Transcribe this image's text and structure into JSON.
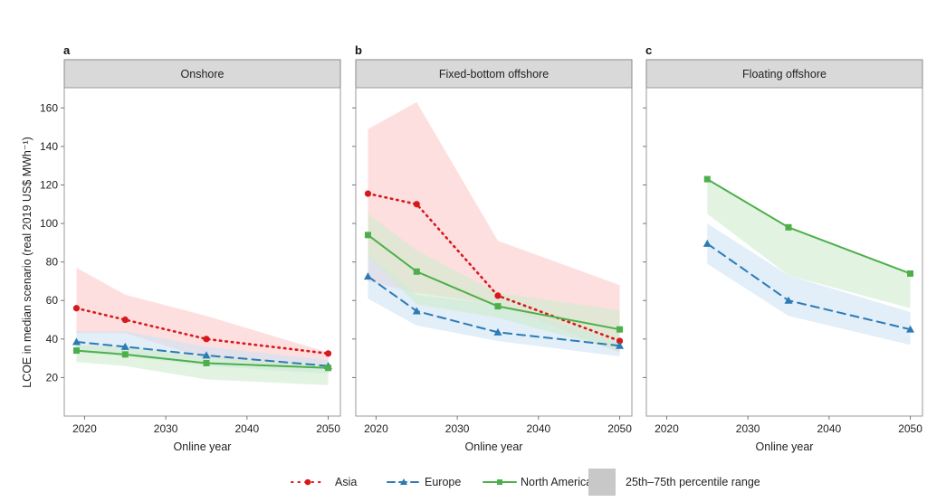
{
  "chart_data": {
    "type": "line",
    "ylabel": "LCOE in median scenario (real 2019 US$ MWh⁻¹)",
    "xlabel": "Online year",
    "ylim": [
      0,
      170
    ],
    "yticks": [
      20,
      40,
      60,
      80,
      100,
      120,
      140,
      160
    ],
    "xlim": [
      2017.5,
      2051.5
    ],
    "xticks": [
      2020,
      2030,
      2040,
      2050
    ],
    "grid": false,
    "legend_position": "bottom",
    "legend": [
      {
        "name": "Asia",
        "color": "#d7191c",
        "style": "dotted",
        "marker": "circle"
      },
      {
        "name": "Europe",
        "color": "#2c7bb6",
        "style": "dashed",
        "marker": "triangle"
      },
      {
        "name": "North America",
        "color": "#4daf4a",
        "style": "solid",
        "marker": "square"
      },
      {
        "name": "25th–75th percentile range",
        "color": "#c8c8c8",
        "style": "fill",
        "marker": "box"
      }
    ],
    "panels": [
      {
        "letter": "a",
        "title": "Onshore",
        "series": [
          {
            "name": "Asia",
            "x": [
              2019,
              2025,
              2035,
              2050
            ],
            "values": [
              56,
              50,
              40,
              32.5
            ],
            "low": [
              43,
              43,
              30,
              24
            ],
            "high": [
              77,
              63,
              52,
              33
            ]
          },
          {
            "name": "Europe",
            "x": [
              2019,
              2025,
              2035,
              2050
            ],
            "values": [
              38.5,
              36,
              31.5,
              26
            ],
            "low": [
              33,
              31,
              26,
              22
            ],
            "high": [
              44,
              44,
              36,
              29
            ]
          },
          {
            "name": "North America",
            "x": [
              2019,
              2025,
              2035,
              2050
            ],
            "values": [
              34,
              32,
              27.5,
              25
            ],
            "low": [
              28,
              26,
              19,
              16
            ],
            "high": [
              37,
              36,
              31,
              27
            ]
          }
        ]
      },
      {
        "letter": "b",
        "title": "Fixed-bottom offshore",
        "series": [
          {
            "name": "Asia",
            "x": [
              2019,
              2025,
              2035,
              2050
            ],
            "values": [
              115.5,
              110,
              62.5,
              39
            ],
            "low": [
              70,
              64,
              58,
              33
            ],
            "high": [
              149,
              163,
              91,
              68
            ]
          },
          {
            "name": "Europe",
            "x": [
              2019,
              2025,
              2035,
              2050
            ],
            "values": [
              72.5,
              54.5,
              43.5,
              36.5
            ],
            "low": [
              61,
              47,
              39,
              31
            ],
            "high": [
              84,
              63,
              58,
              38
            ]
          },
          {
            "name": "North America",
            "x": [
              2019,
              2025,
              2035,
              2050
            ],
            "values": [
              94,
              75,
              57,
              45
            ],
            "low": [
              83,
              58,
              51,
              34
            ],
            "high": [
              105,
              86,
              64,
              55
            ]
          }
        ]
      },
      {
        "letter": "c",
        "title": "Floating offshore",
        "series": [
          {
            "name": "Europe",
            "x": [
              2025,
              2035,
              2050
            ],
            "values": [
              89.5,
              60,
              45
            ],
            "low": [
              79,
              52,
              37
            ],
            "high": [
              100,
              73,
              54
            ]
          },
          {
            "name": "North America",
            "x": [
              2025,
              2035,
              2050
            ],
            "values": [
              123,
              98,
              74
            ],
            "low": [
              105,
              73,
              56
            ],
            "high": [
              123,
              98,
              74
            ]
          }
        ]
      }
    ]
  }
}
